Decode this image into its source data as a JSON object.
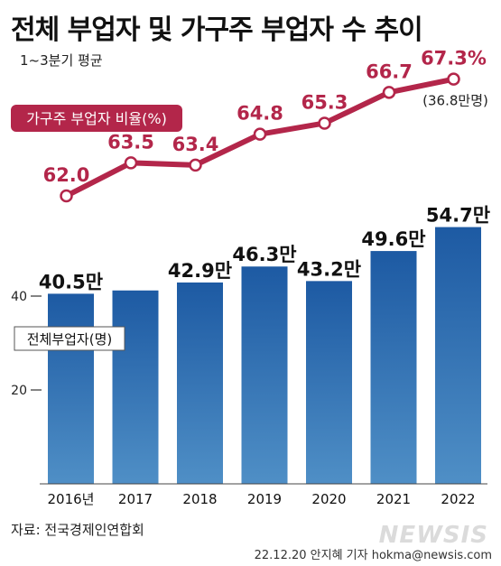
{
  "title": "전체 부업자 및 가구주 부업자 수 추이",
  "subtitle": "1~3분기 평균",
  "source": "자료: 전국경제인연합회",
  "credit": "22.12.20 안지혜 기자 hokma@newsis.com",
  "watermark": "NEWSIS",
  "colors": {
    "bar_top": "#1d5aa3",
    "bar_bottom": "#4f8fc6",
    "line": "#b3264a",
    "badge": "#b3264a",
    "badge_text": "#ffffff"
  },
  "chart_data": [
    {
      "type": "bar",
      "categories": [
        "2016년",
        "2017",
        "2018",
        "2019",
        "2020",
        "2021",
        "2022"
      ],
      "values": [
        40.5,
        41.2,
        42.9,
        46.3,
        43.2,
        49.6,
        54.7
      ],
      "data_labels": [
        "40.5만",
        "",
        "42.9만",
        "46.3만",
        "43.2만",
        "49.6만",
        "54.7만"
      ],
      "ylabel": "전체부업자(명)",
      "yticks": [
        20,
        40
      ],
      "ylim": [
        0,
        58
      ],
      "grid": false
    },
    {
      "type": "line",
      "categories": [
        "2016년",
        "2017",
        "2018",
        "2019",
        "2020",
        "2021",
        "2022"
      ],
      "values": [
        62.0,
        63.5,
        63.4,
        64.8,
        65.3,
        66.7,
        67.3
      ],
      "data_labels": [
        "62.0",
        "63.5",
        "63.4",
        "64.8",
        "65.3",
        "66.7",
        "67.3%"
      ],
      "label": "가구주 부업자 비율(%)",
      "annotation": "(36.8만명)",
      "ylim": [
        60,
        68
      ]
    }
  ]
}
